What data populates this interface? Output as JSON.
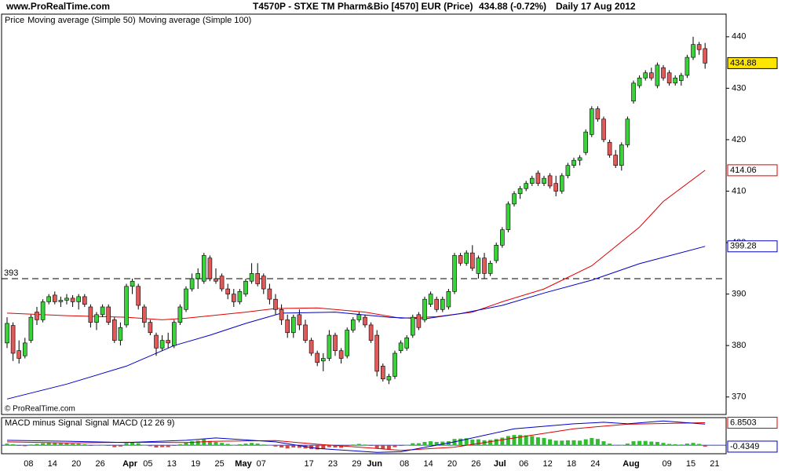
{
  "header": {
    "site": "www.ProRealTime.com",
    "instrument": "T4570P - STXE TM Pharm&Bio [4570] EUR (Price)",
    "quote": "434.88 (-0.72%)",
    "period": "Daily",
    "date": "17 Aug 2012"
  },
  "chart_data": [
    {
      "type": "candlestick",
      "legend_title": "Price",
      "watermark": "© ProRealTime.com",
      "up_color": "#39d239",
      "down_color": "#e05a5a",
      "ylim": [
        366.6,
        444.4
      ],
      "yticks": [
        370,
        380,
        390,
        400,
        410,
        420,
        430,
        440
      ],
      "reference_line": 393,
      "categories": [
        null,
        null,
        null,
        null,
        "08",
        null,
        null,
        null,
        "14",
        null,
        null,
        null,
        "20",
        null,
        null,
        null,
        "26",
        null,
        null,
        null,
        null,
        "Apr",
        null,
        null,
        "05",
        null,
        null,
        null,
        "13",
        null,
        null,
        null,
        "19",
        null,
        null,
        null,
        "25",
        null,
        null,
        null,
        "May",
        null,
        null,
        "07",
        null,
        null,
        null,
        null,
        null,
        null,
        null,
        "17",
        null,
        null,
        null,
        "23",
        null,
        null,
        null,
        "29",
        null,
        null,
        "Jun",
        null,
        null,
        null,
        null,
        "08",
        null,
        null,
        null,
        "14",
        null,
        null,
        null,
        "20",
        null,
        null,
        null,
        "26",
        null,
        null,
        null,
        "Jul",
        null,
        null,
        null,
        "06",
        null,
        null,
        null,
        "12",
        null,
        null,
        null,
        "18",
        null,
        null,
        null,
        "24",
        null,
        null,
        null,
        null,
        null,
        "Aug",
        null,
        null,
        null,
        null,
        null,
        "09",
        null,
        null,
        null,
        "15",
        null,
        null,
        null,
        "21"
      ],
      "candles": [
        [
          380.5,
          385.5,
          379.5,
          384.3
        ],
        [
          383.9,
          384.5,
          377,
          378.5
        ],
        [
          379,
          381,
          376.5,
          377.5
        ],
        [
          378,
          381.5,
          377.5,
          380.5
        ],
        [
          381,
          386,
          380.5,
          385.5
        ],
        [
          386.5,
          387.5,
          384,
          385
        ],
        [
          385,
          389,
          384.5,
          388.5
        ],
        [
          388.5,
          390,
          388,
          389.5
        ],
        [
          389.8,
          390.5,
          388,
          388.5
        ],
        [
          388.5,
          389.5,
          387.5,
          388.8
        ],
        [
          388.8,
          390,
          388,
          389.2
        ],
        [
          389.2,
          389.8,
          387.5,
          388.5
        ],
        [
          388.5,
          390,
          387,
          389.5
        ],
        [
          389.5,
          390,
          387.5,
          388
        ],
        [
          387.5,
          388,
          383.5,
          384.5
        ],
        [
          384.5,
          386.5,
          383,
          386
        ],
        [
          386,
          388,
          385.5,
          387.5
        ],
        [
          387.5,
          388,
          384,
          384.5
        ],
        [
          385,
          385.5,
          380.5,
          381
        ],
        [
          381,
          384.5,
          380,
          383.5
        ],
        [
          384,
          392,
          383.5,
          391.5
        ],
        [
          391.5,
          393,
          390,
          392.5
        ],
        [
          391.5,
          392,
          387,
          387.8
        ],
        [
          387.5,
          388,
          383.5,
          384.5
        ],
        [
          384.5,
          385,
          382,
          382.5
        ],
        [
          382,
          382.5,
          378,
          379.5
        ],
        [
          379.5,
          382,
          379,
          381
        ],
        [
          381,
          382.5,
          379.5,
          380.5
        ],
        [
          380,
          385,
          379.5,
          384.5
        ],
        [
          384.5,
          388,
          384,
          387.5
        ],
        [
          387,
          391.5,
          386.5,
          391
        ],
        [
          391,
          394,
          390.5,
          393
        ],
        [
          393,
          395,
          391,
          394
        ],
        [
          392.5,
          398,
          392,
          397.5
        ],
        [
          397,
          397.5,
          392.5,
          393
        ],
        [
          393,
          395,
          392,
          392.5
        ],
        [
          393.5,
          394,
          390.5,
          391
        ],
        [
          391,
          392,
          389,
          390
        ],
        [
          390,
          391,
          387.5,
          388.5
        ],
        [
          388.5,
          391,
          388,
          390.5
        ],
        [
          390,
          393,
          389.5,
          392.5
        ],
        [
          392.5,
          396,
          392,
          394
        ],
        [
          394,
          396,
          391.5,
          392
        ],
        [
          393.5,
          394,
          390,
          391
        ],
        [
          391,
          392,
          388,
          389
        ],
        [
          389,
          390,
          386,
          387
        ],
        [
          387,
          388,
          384,
          385
        ],
        [
          385,
          386,
          381.5,
          382.5
        ],
        [
          382.5,
          386,
          381.5,
          385.5
        ],
        [
          386,
          387,
          383,
          384
        ],
        [
          384,
          385,
          380.5,
          381
        ],
        [
          381,
          381.5,
          378,
          378.5
        ],
        [
          378.5,
          379,
          376,
          376.7
        ],
        [
          377,
          378.5,
          375,
          377.5
        ],
        [
          377.5,
          383,
          377,
          382
        ],
        [
          382,
          382.5,
          378,
          379
        ],
        [
          379,
          379.5,
          376.5,
          377.5
        ],
        [
          378,
          383.5,
          377.5,
          383
        ],
        [
          383,
          385.5,
          382.5,
          385
        ],
        [
          385,
          386.5,
          384.5,
          386
        ],
        [
          385.5,
          386,
          383.5,
          384
        ],
        [
          384,
          384.5,
          380.5,
          381
        ],
        [
          382,
          383,
          374,
          375
        ],
        [
          376,
          376.5,
          373,
          373.5
        ],
        [
          373.3,
          374.5,
          372.5,
          374
        ],
        [
          374,
          379,
          373.5,
          378.5
        ],
        [
          379,
          381,
          378.5,
          380.5
        ],
        [
          379.5,
          382,
          379,
          381.5
        ],
        [
          382,
          386,
          381.5,
          385.5
        ],
        [
          386,
          386.5,
          383,
          383.5
        ],
        [
          385,
          389.5,
          384.5,
          389
        ],
        [
          388,
          390.5,
          387.5,
          390
        ],
        [
          389,
          389.5,
          386.5,
          387
        ],
        [
          387,
          389.5,
          386.5,
          389
        ],
        [
          387.5,
          391,
          387,
          390.5
        ],
        [
          390.5,
          398,
          390,
          397.5
        ],
        [
          397.5,
          398,
          395.5,
          396
        ],
        [
          396,
          398.5,
          395.5,
          398
        ],
        [
          398,
          399.5,
          394.5,
          395
        ],
        [
          394,
          397.5,
          393,
          397
        ],
        [
          397,
          398,
          393,
          394
        ],
        [
          394,
          396.5,
          393.5,
          396
        ],
        [
          396.5,
          400,
          396,
          399.5
        ],
        [
          399.5,
          403,
          399,
          402.5
        ],
        [
          402.5,
          408,
          402,
          407.5
        ],
        [
          407.5,
          410,
          407,
          409.5
        ],
        [
          409.5,
          411,
          408.5,
          410.5
        ],
        [
          410.5,
          412,
          410,
          411.5
        ],
        [
          411.5,
          413,
          411,
          412.5
        ],
        [
          413.5,
          414,
          411,
          411.5
        ],
        [
          411.5,
          413,
          411,
          412.5
        ],
        [
          413,
          413.5,
          410.5,
          411
        ],
        [
          411.5,
          413,
          409,
          410
        ],
        [
          410,
          413.5,
          409.5,
          413
        ],
        [
          413,
          415.5,
          412.5,
          415
        ],
        [
          415,
          416.5,
          414.5,
          416
        ],
        [
          416,
          417,
          415,
          416.5
        ],
        [
          417.5,
          422,
          417,
          421.5
        ],
        [
          421,
          426.5,
          420.5,
          426
        ],
        [
          426,
          426.5,
          423.5,
          424
        ],
        [
          424,
          424.5,
          419.5,
          420
        ],
        [
          419.5,
          420,
          416.5,
          417
        ],
        [
          417,
          418,
          414.5,
          415
        ],
        [
          415,
          419.5,
          414,
          419
        ],
        [
          419,
          424.5,
          418.5,
          424
        ],
        [
          427.5,
          431.5,
          427,
          431
        ],
        [
          430.5,
          432.5,
          430,
          432
        ],
        [
          432,
          433.5,
          431.5,
          433
        ],
        [
          433,
          434,
          431.5,
          432
        ],
        [
          430.5,
          435,
          430,
          434.5
        ],
        [
          434,
          434.5,
          431.5,
          432
        ],
        [
          433,
          433.5,
          430.5,
          431
        ],
        [
          431,
          432.5,
          430.5,
          432
        ],
        [
          431.5,
          433,
          430.5,
          432.5
        ],
        [
          432.5,
          436.5,
          432,
          436
        ],
        [
          436,
          440,
          435.5,
          438.5
        ],
        [
          438.5,
          439,
          436.5,
          437.5
        ],
        [
          437.7,
          438.8,
          433.8,
          434.88
        ],
        null,
        null
      ],
      "series": [
        {
          "name": "Moving average (Simple 50)",
          "color": "#e00000",
          "x": [
            0,
            10,
            20,
            26,
            30,
            40,
            45,
            52,
            60,
            66,
            72,
            78,
            83,
            90,
            98,
            106,
            110,
            117
          ],
          "values": [
            386.3,
            385.8,
            385.5,
            385,
            385.3,
            386.5,
            387.2,
            387.3,
            386.5,
            385.3,
            385.6,
            386.5,
            388.5,
            391,
            395.5,
            403,
            408,
            414.06
          ]
        },
        {
          "name": "Moving average (Simple 100)",
          "color": "#0000c8",
          "x": [
            0,
            10,
            20,
            28,
            34,
            40,
            46,
            55,
            64,
            70,
            76,
            83,
            90,
            98,
            106,
            117
          ],
          "values": [
            369.6,
            372.5,
            376,
            380,
            382,
            384.3,
            386.3,
            386.5,
            385.5,
            385.2,
            386.2,
            387.8,
            390.2,
            392.7,
            395.9,
            399.28
          ]
        }
      ]
    },
    {
      "type": "macd",
      "ylim": [
        -2.6,
        8.4
      ],
      "series": [
        {
          "name": "MACD minus Signal",
          "color": "#e07070",
          "bar_color": "#33bb33",
          "negative_color": "#d04848",
          "values": [
            0.5,
            0.3,
            -0.2,
            -0.3,
            0.2,
            0.4,
            0.6,
            0.8,
            0.7,
            0.6,
            0.6,
            0.5,
            0.5,
            0.3,
            -0.2,
            -0.1,
            0.1,
            -0.2,
            -0.6,
            -0.4,
            0.6,
            0.9,
            0.6,
            0.1,
            -0.3,
            -0.7,
            -0.6,
            -0.6,
            -0.2,
            0.3,
            0.8,
            1.2,
            1.4,
            1.8,
            1.3,
            1.0,
            0.7,
            0.4,
            0.1,
            0.3,
            0.5,
            0.7,
            0.5,
            0.2,
            -0.1,
            -0.4,
            -0.7,
            -1.0,
            -0.7,
            -0.8,
            -1.0,
            -1.2,
            -1.3,
            -1.1,
            -0.6,
            -0.7,
            -0.8,
            -0.2,
            0.2,
            0.4,
            0.2,
            -0.2,
            -0.9,
            -1.2,
            -1.2,
            -0.6,
            -0.2,
            0.1,
            0.6,
            0.6,
            1.0,
            1.2,
            1.0,
            1.1,
            1.2,
            1.9,
            2.0,
            2.1,
            1.7,
            1.8,
            1.5,
            1.6,
            1.9,
            2.3,
            2.8,
            3.1,
            3.1,
            3.0,
            2.8,
            2.4,
            2.2,
            1.8,
            1.4,
            1.4,
            1.5,
            1.5,
            1.4,
            1.8,
            2.2,
            1.9,
            1.2,
            0.5,
            -0.1,
            0.1,
            0.5,
            1.2,
            1.3,
            1.3,
            1.1,
            1.0,
            0.7,
            0.4,
            0.3,
            0.2,
            0.5,
            0.7,
            0.4,
            -0.4349
          ]
        },
        {
          "name": "Signal",
          "color": "#dd0000",
          "x": [
            0,
            10,
            20,
            30,
            35,
            45,
            52,
            62,
            66,
            75,
            85,
            95,
            100,
            104,
            110,
            117
          ],
          "values": [
            1.0,
            0.7,
            0.9,
            0.8,
            1.2,
            1.4,
            0.3,
            -1.0,
            -1.6,
            -0.6,
            2.2,
            5.0,
            5.8,
            6.4,
            6.6,
            6.8503
          ]
        },
        {
          "name": "MACD (12 26 9)",
          "color": "#0000c8",
          "x": [
            0,
            10,
            20,
            30,
            35,
            45,
            52,
            62,
            66,
            75,
            85,
            95,
            100,
            104,
            110,
            117
          ],
          "values": [
            1.5,
            1.2,
            0.8,
            1.5,
            2.2,
            1.0,
            -1.0,
            -2.2,
            -2.0,
            1.0,
            5.0,
            6.5,
            7.0,
            6.5,
            7.4,
            6.42
          ]
        }
      ]
    }
  ]
}
